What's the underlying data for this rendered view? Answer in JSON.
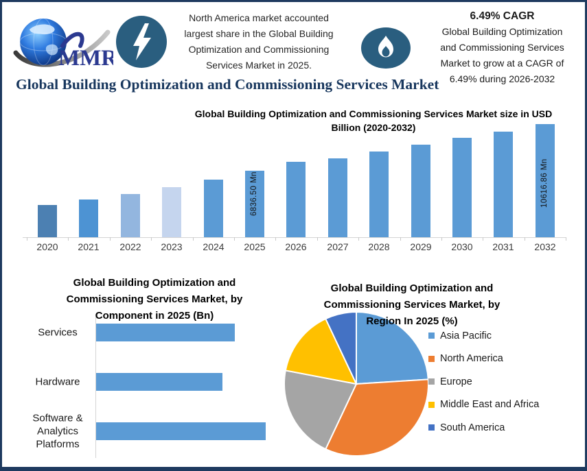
{
  "frame": {
    "border_color": "#1E3A5F",
    "background": "#FFFFFF"
  },
  "header": {
    "logo": {
      "brand": "MMR"
    },
    "badge_circle_color": "#2A5E7F",
    "left_note": {
      "icon": "lightning-bolt",
      "text": "North America market accounted\nlargest share in the Global Building\nOptimization and Commissioning\nServices Market in 2025."
    },
    "right_note": {
      "icon": "flame",
      "title": "6.49% CAGR",
      "text": "Global Building Optimization\nand Commissioning Services\nMarket to grow at a CAGR of\n6.49% during 2026-2032"
    }
  },
  "page_title": {
    "text": "Global Building Optimization and Commissioning Services Market",
    "color": "#17365D"
  },
  "chart_data": [
    {
      "id": "annual-market-size",
      "type": "bar",
      "title": "Global Building Optimization and Commissioning Services Market size in USD\nBillion (2020-2032)",
      "unit": "USD Mn",
      "categories": [
        "2020",
        "2021",
        "2022",
        "2023",
        "2024",
        "2025",
        "2026",
        "2027",
        "2028",
        "2029",
        "2030",
        "2031",
        "2032"
      ],
      "values": [
        4050,
        4500,
        4950,
        5500,
        6110,
        6836.5,
        7560,
        7840,
        8390,
        8950,
        9500,
        10010,
        10616.86
      ],
      "values_note": "only 2025 and 2032 carry data labels; remaining values estimated from bar heights",
      "data_labels": {
        "2025": "6836.50 Mn",
        "2032": "10616.86 Mn"
      },
      "bar_colors": [
        "#4C80B2",
        "#4D93D3",
        "#93B6DF",
        "#C5D5EE",
        "#5B9BD5",
        "#5B9BD5",
        "#5B9BD5",
        "#5B9BD5",
        "#5B9BD5",
        "#5B9BD5",
        "#5B9BD5",
        "#5B9BD5",
        "#5B9BD5"
      ],
      "axis": {
        "y_axis_shown": false,
        "grid": false,
        "x_labels_shown": true
      }
    },
    {
      "id": "by-component-2025",
      "type": "bar",
      "orientation": "horizontal",
      "title": "Global Building Optimization and\nCommissioning Services Market, by\nComponent in 2025 (Bn)",
      "unit": "USD Bn",
      "categories": [
        "Services",
        "Hardware",
        "Software & Analytics Platforms"
      ],
      "category_display": [
        "Services",
        "Hardware",
        "Software &\nAnalytics\nPlatforms"
      ],
      "values": [
        2.18,
        1.99,
        2.67
      ],
      "values_note": "bars unlabeled; values estimated from relative bar lengths",
      "bar_color": "#5B9BD5",
      "axis": {
        "x_axis_shown": false,
        "grid": false
      }
    },
    {
      "id": "by-region-2025",
      "type": "pie",
      "title": "Global Building Optimization and\nCommissioning Services Market, by\nRegion In 2025 (%)",
      "unit": "%",
      "labels": [
        "Asia Pacific",
        "North America",
        "Europe",
        "Middle East and Africa",
        "South America"
      ],
      "values": [
        24,
        33,
        21,
        15,
        7
      ],
      "colors": [
        "#5B9BD5",
        "#ED7D31",
        "#A5A5A5",
        "#FFC000",
        "#4472C4"
      ],
      "values_note": "slices unlabeled; percentages estimated from slice angles",
      "legend_position": "right",
      "start_angle_deg": 0,
      "direction": "clockwise"
    }
  ]
}
